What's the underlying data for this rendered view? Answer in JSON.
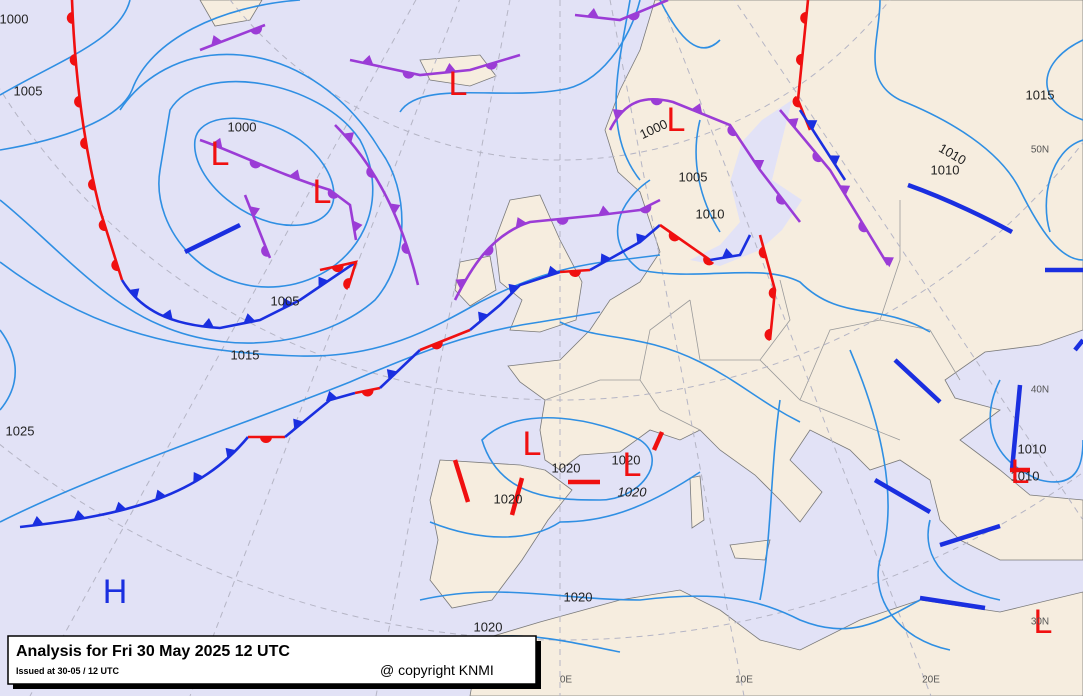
{
  "header": {
    "title": "Analysis for Fri 30 May 2025 12 UTC",
    "issued": "Issued at 30-05 / 12 UTC",
    "copyright": "@ copyright KNMI"
  },
  "isobar_labels": [
    "1000",
    "1005",
    "1000",
    "1005",
    "1015",
    "1025",
    "1000",
    "1005",
    "1010",
    "1015",
    "1010",
    "1010",
    "1020",
    "1020",
    "1020",
    "1010",
    "1010",
    "1020",
    "1020",
    "1020"
  ],
  "pressure_centers": [
    "L",
    "L",
    "L",
    "L",
    "L",
    "L",
    "L",
    "L",
    "H"
  ],
  "grid_labels": [
    "50N",
    "40N",
    "30N",
    "0E",
    "10E",
    "20E"
  ]
}
